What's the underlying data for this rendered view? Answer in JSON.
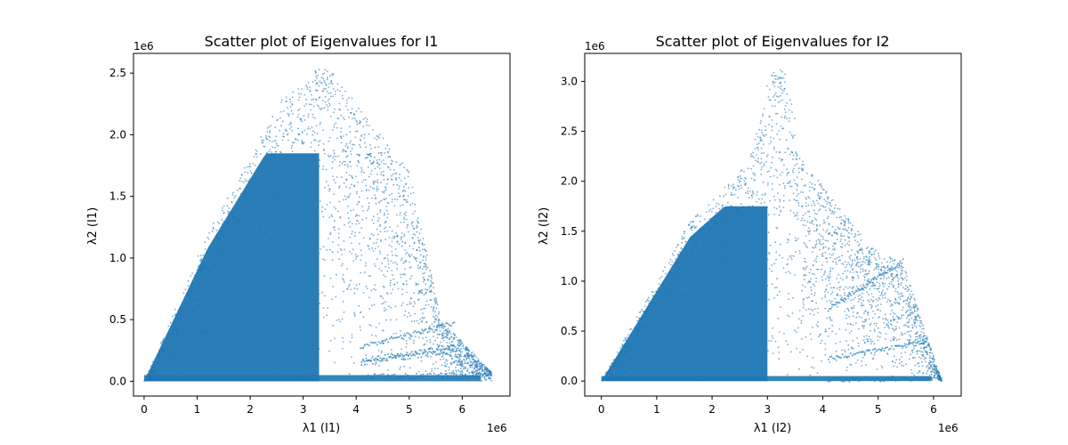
{
  "chart_data": [
    {
      "type": "scatter",
      "title": "Scatter plot of Eigenvalues for I1",
      "xlabel": "λ1 (I1)",
      "ylabel": "λ2 (I1)",
      "x_offset_text": "1e6",
      "y_offset_text": "1e6",
      "xlim": [
        -200000,
        6900000
      ],
      "ylim": [
        -120000,
        2660000
      ],
      "xticks": [
        0,
        1,
        2,
        3,
        4,
        5,
        6
      ],
      "yticks": [
        0.0,
        0.5,
        1.0,
        1.5,
        2.0,
        2.5
      ],
      "marker_color": "#1f77b4",
      "grid": false,
      "series_shape": {
        "x_max": 6550000,
        "y_max": 2540000,
        "dense_diagonal_slope": 1.0,
        "peak": [
          3400000,
          2540000
        ],
        "tails": [
          [
            5850000,
            470000
          ],
          [
            5850000,
            280000
          ],
          [
            5900000,
            250000
          ],
          [
            6550000,
            60000
          ]
        ]
      }
    },
    {
      "type": "scatter",
      "title": "Scatter plot of Eigenvalues for I2",
      "xlabel": "λ1 (I2)",
      "ylabel": "λ2 (I2)",
      "x_offset_text": "1e6",
      "y_offset_text": "1e6",
      "xlim": [
        -300000,
        6500000
      ],
      "ylim": [
        -150000,
        3280000
      ],
      "xticks": [
        0,
        1,
        2,
        3,
        4,
        5,
        6
      ],
      "yticks": [
        0.0,
        0.5,
        1.0,
        1.5,
        2.0,
        2.5,
        3.0
      ],
      "marker_color": "#1f77b4",
      "grid": false,
      "series_shape": {
        "x_max": 6150000,
        "y_max": 3120000,
        "dense_diagonal_slope": 1.0,
        "peak": [
          3150000,
          3120000
        ],
        "tails": [
          [
            5800000,
            380000
          ],
          [
            5450000,
            1200000
          ],
          [
            6150000,
            20000
          ]
        ]
      }
    }
  ]
}
